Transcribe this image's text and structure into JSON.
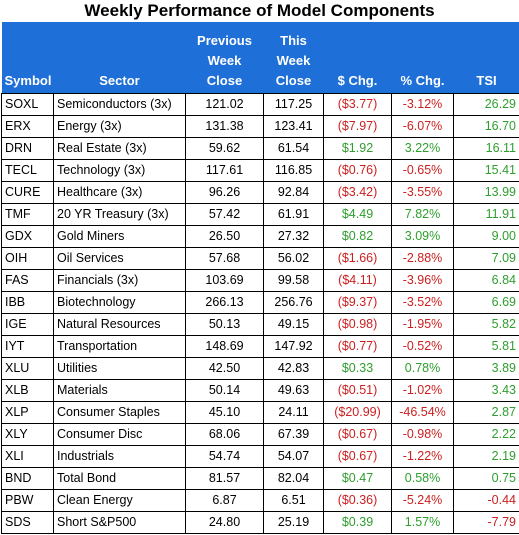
{
  "title": "Weekly Performance of Model Components",
  "headers": {
    "symbol": "Symbol",
    "sector": "Sector",
    "prev": "Previous Week Close",
    "this": "This Week Close",
    "chg": "$ Chg.",
    "pct": "% Chg.",
    "tsi": "TSI"
  },
  "colors": {
    "header_bg": "#1f6fd8",
    "positive": "#2e9e2e",
    "negative": "#cc1f1f"
  },
  "rows": [
    {
      "symbol": "SOXL",
      "sector": "Semiconductors (3x)",
      "prev": "121.02",
      "this": "117.25",
      "chg": "($3.77)",
      "pct": "-3.12%",
      "tsi": "26.29"
    },
    {
      "symbol": "ERX",
      "sector": "Energy (3x)",
      "prev": "131.38",
      "this": "123.41",
      "chg": "($7.97)",
      "pct": "-6.07%",
      "tsi": "16.70"
    },
    {
      "symbol": "DRN",
      "sector": "Real Estate (3x)",
      "prev": "59.62",
      "this": "61.54",
      "chg": "$1.92",
      "pct": "3.22%",
      "tsi": "16.11"
    },
    {
      "symbol": "TECL",
      "sector": "Technology (3x)",
      "prev": "117.61",
      "this": "116.85",
      "chg": "($0.76)",
      "pct": "-0.65%",
      "tsi": "15.41"
    },
    {
      "symbol": "CURE",
      "sector": "Healthcare (3x)",
      "prev": "96.26",
      "this": "92.84",
      "chg": "($3.42)",
      "pct": "-3.55%",
      "tsi": "13.99"
    },
    {
      "symbol": "TMF",
      "sector": "20 YR Treasury (3x)",
      "prev": "57.42",
      "this": "61.91",
      "chg": "$4.49",
      "pct": "7.82%",
      "tsi": "11.91"
    },
    {
      "symbol": "GDX",
      "sector": "Gold Miners",
      "prev": "26.50",
      "this": "27.32",
      "chg": "$0.82",
      "pct": "3.09%",
      "tsi": "9.00"
    },
    {
      "symbol": "OIH",
      "sector": "Oil Services",
      "prev": "57.68",
      "this": "56.02",
      "chg": "($1.66)",
      "pct": "-2.88%",
      "tsi": "7.09"
    },
    {
      "symbol": "FAS",
      "sector": "Financials (3x)",
      "prev": "103.69",
      "this": "99.58",
      "chg": "($4.11)",
      "pct": "-3.96%",
      "tsi": "6.84"
    },
    {
      "symbol": "IBB",
      "sector": "Biotechnology",
      "prev": "266.13",
      "this": "256.76",
      "chg": "($9.37)",
      "pct": "-3.52%",
      "tsi": "6.69"
    },
    {
      "symbol": "IGE",
      "sector": "Natural Resources",
      "prev": "50.13",
      "this": "49.15",
      "chg": "($0.98)",
      "pct": "-1.95%",
      "tsi": "5.82"
    },
    {
      "symbol": "IYT",
      "sector": "Transportation",
      "prev": "148.69",
      "this": "147.92",
      "chg": "($0.77)",
      "pct": "-0.52%",
      "tsi": "5.81"
    },
    {
      "symbol": "XLU",
      "sector": "Utilities",
      "prev": "42.50",
      "this": "42.83",
      "chg": "$0.33",
      "pct": "0.78%",
      "tsi": "3.89"
    },
    {
      "symbol": "XLB",
      "sector": "Materials",
      "prev": "50.14",
      "this": "49.63",
      "chg": "($0.51)",
      "pct": "-1.02%",
      "tsi": "3.43"
    },
    {
      "symbol": "XLP",
      "sector": "Consumer Staples",
      "prev": "45.10",
      "this": "24.11",
      "chg": "($20.99)",
      "pct": "-46.54%",
      "tsi": "2.87"
    },
    {
      "symbol": "XLY",
      "sector": "Consumer Disc",
      "prev": "68.06",
      "this": "67.39",
      "chg": "($0.67)",
      "pct": "-0.98%",
      "tsi": "2.22"
    },
    {
      "symbol": "XLI",
      "sector": "Industrials",
      "prev": "54.74",
      "this": "54.07",
      "chg": "($0.67)",
      "pct": "-1.22%",
      "tsi": "2.19"
    },
    {
      "symbol": "BND",
      "sector": "Total Bond",
      "prev": "81.57",
      "this": "82.04",
      "chg": "$0.47",
      "pct": "0.58%",
      "tsi": "0.75"
    },
    {
      "symbol": "PBW",
      "sector": "Clean Energy",
      "prev": "6.87",
      "this": "6.51",
      "chg": "($0.36)",
      "pct": "-5.24%",
      "tsi": "-0.44"
    },
    {
      "symbol": "SDS",
      "sector": "Short S&P500",
      "prev": "24.80",
      "this": "25.19",
      "chg": "$0.39",
      "pct": "1.57%",
      "tsi": "-7.79"
    }
  ]
}
